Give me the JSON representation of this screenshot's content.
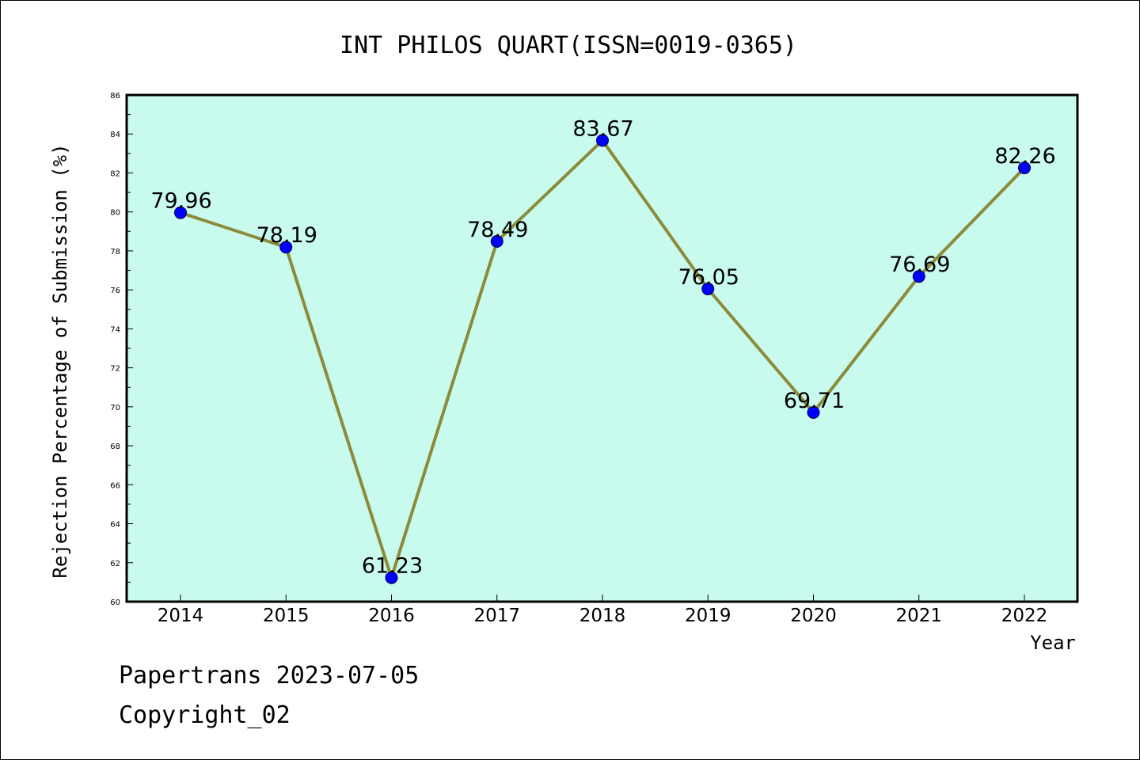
{
  "chart_data": {
    "type": "line",
    "title": "INT PHILOS QUART(ISSN=0019-0365)",
    "xlabel": "Year",
    "ylabel": "Rejection Percentage of Submission (%)",
    "categories": [
      "2014",
      "2015",
      "2016",
      "2017",
      "2018",
      "2019",
      "2020",
      "2021",
      "2022"
    ],
    "values": [
      79.96,
      78.19,
      61.23,
      78.49,
      83.67,
      76.05,
      69.71,
      76.69,
      82.26
    ],
    "data_labels": [
      "79.96",
      "78.19",
      "61.23",
      "78.49",
      "83.67",
      "76.05",
      "69.71",
      "76.69",
      "82.26"
    ],
    "ylim": [
      60,
      86
    ],
    "yticks": [
      "60",
      "62",
      "64",
      "66",
      "68",
      "70",
      "72",
      "74",
      "76",
      "78",
      "80",
      "82",
      "84",
      "86"
    ],
    "grid": false,
    "colors": {
      "plot_background": "#c8fbee",
      "line": "#8b8b3a",
      "marker": "#0000ff"
    }
  },
  "footer": {
    "line1": "Papertrans 2023-07-05",
    "line2": "Copyright_02"
  }
}
